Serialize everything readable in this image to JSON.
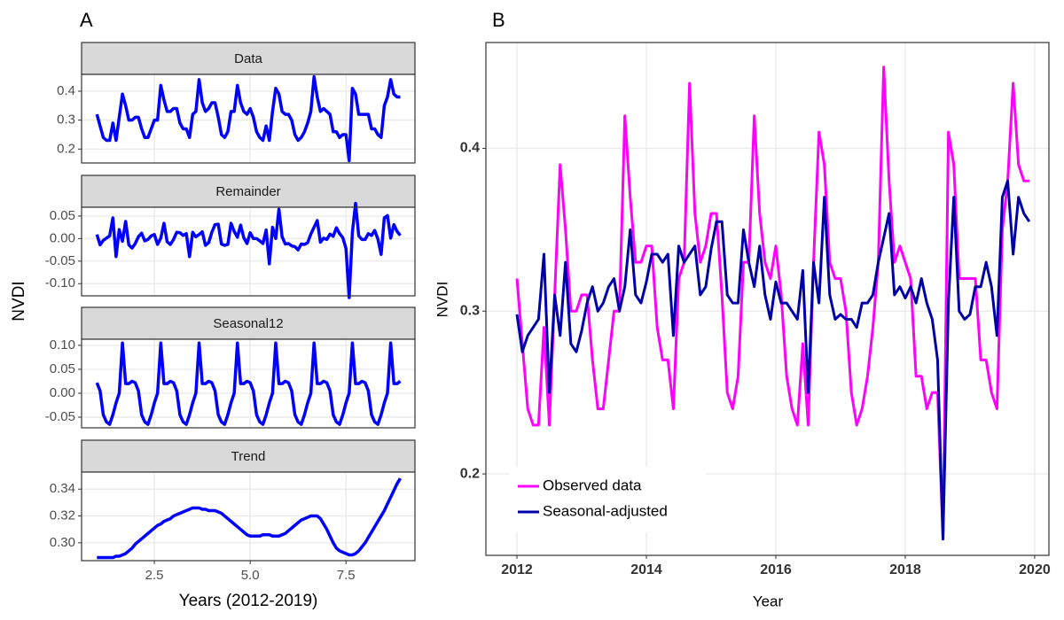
{
  "chart_data": [
    {
      "type": "line",
      "panel_label": "A",
      "ylabel": "NVDI",
      "xlabel": "Years (2012-2019)",
      "color": "#0000ff",
      "grid": true,
      "x": [
        1,
        1.083,
        1.167,
        1.25,
        1.333,
        1.417,
        1.5,
        1.583,
        1.667,
        1.75,
        1.833,
        1.917,
        2,
        2.083,
        2.167,
        2.25,
        2.333,
        2.417,
        2.5,
        2.583,
        2.667,
        2.75,
        2.833,
        2.917,
        3,
        3.083,
        3.167,
        3.25,
        3.333,
        3.417,
        3.5,
        3.583,
        3.667,
        3.75,
        3.833,
        3.917,
        4,
        4.083,
        4.167,
        4.25,
        4.333,
        4.417,
        4.5,
        4.583,
        4.667,
        4.75,
        4.833,
        4.917,
        5,
        5.083,
        5.167,
        5.25,
        5.333,
        5.417,
        5.5,
        5.583,
        5.667,
        5.75,
        5.833,
        5.917,
        6,
        6.083,
        6.167,
        6.25,
        6.333,
        6.417,
        6.5,
        6.583,
        6.667,
        6.75,
        6.833,
        6.917,
        7,
        7.083,
        7.167,
        7.25,
        7.333,
        7.417,
        7.5,
        7.583,
        7.667,
        7.75,
        7.833,
        7.917,
        8,
        8.083,
        8.167,
        8.25,
        8.333,
        8.417,
        8.5,
        8.583,
        8.667,
        8.75,
        8.833,
        8.917
      ],
      "xlim": [
        0.6,
        9.3
      ],
      "xticks": [
        2.5,
        {
          "value": 5,
          "label": "5.0"
        },
        7.5
      ],
      "facets": [
        {
          "title": "Data",
          "ylim": [
            0.152,
            0.458
          ],
          "yticks": [
            0.2,
            0.3,
            0.4
          ],
          "values": [
            0.32,
            0.28,
            0.24,
            0.23,
            0.23,
            0.29,
            0.23,
            0.31,
            0.39,
            0.35,
            0.3,
            0.3,
            0.31,
            0.31,
            0.27,
            0.24,
            0.24,
            0.27,
            0.3,
            0.3,
            0.42,
            0.37,
            0.33,
            0.33,
            0.34,
            0.34,
            0.29,
            0.27,
            0.27,
            0.24,
            0.32,
            0.33,
            0.44,
            0.36,
            0.33,
            0.34,
            0.36,
            0.36,
            0.31,
            0.25,
            0.24,
            0.26,
            0.33,
            0.33,
            0.42,
            0.36,
            0.33,
            0.32,
            0.34,
            0.31,
            0.26,
            0.24,
            0.23,
            0.28,
            0.23,
            0.33,
            0.41,
            0.39,
            0.33,
            0.32,
            0.32,
            0.3,
            0.25,
            0.23,
            0.24,
            0.26,
            0.29,
            0.33,
            0.45,
            0.38,
            0.33,
            0.34,
            0.33,
            0.32,
            0.26,
            0.26,
            0.24,
            0.25,
            0.25,
            0.16,
            0.41,
            0.39,
            0.32,
            0.32,
            0.32,
            0.32,
            0.27,
            0.27,
            0.25,
            0.24,
            0.35,
            0.38,
            0.44,
            0.39,
            0.38,
            0.38
          ]
        },
        {
          "title": "Remainder",
          "ylim": [
            -0.127,
            0.0695
          ],
          "yticks": [
            {
              "value": -0.1,
              "label": "-0.10"
            },
            -0.05,
            {
              "value": 0,
              "label": "0.00"
            },
            0.05
          ],
          "values": [
            0.009,
            -0.014,
            -0.004,
            0.001,
            0.006,
            0.046,
            -0.04,
            0.02,
            -0.006,
            0.038,
            -0.014,
            -0.021,
            -0.011,
            0.004,
            0.012,
            -0.005,
            -0.002,
            0.006,
            0.009,
            -0.013,
            0.001,
            0.034,
            -0.007,
            -0.013,
            -0.002,
            0.014,
            0.013,
            0.007,
            0.011,
            -0.04,
            0.014,
            0.004,
            0.009,
            0.015,
            -0.015,
            -0.009,
            0.014,
            0.031,
            0.032,
            -0.012,
            -0.015,
            -0.013,
            0.034,
            0.016,
            0.003,
            0.03,
            0.002,
            -0.011,
            0.013,
            0,
            0,
            -0.005,
            -0.011,
            0.019,
            -0.056,
            0.025,
            0,
            0.065,
            0.004,
            -0.012,
            -0.011,
            -0.016,
            -0.018,
            -0.025,
            -0.012,
            -0.013,
            -0.009,
            0.01,
            0.025,
            0.04,
            -0.008,
            0.001,
            -0.002,
            0.01,
            0.005,
            0.024,
            0.011,
            0.002,
            -0.022,
            -0.131,
            0.014,
            0.078,
            0.006,
            -0.002,
            -0.002,
            0.011,
            0.007,
            0.018,
            -0.001,
            -0.035,
            0.046,
            0.051,
            0.001,
            0.031,
            0.016,
            0.007
          ]
        },
        {
          "title": "Seasonal12",
          "ylim": [
            -0.0722,
            0.1128
          ],
          "yticks": [
            -0.05,
            {
              "value": 0,
              "label": "0.00"
            },
            0.05,
            {
              "value": 0.1,
              "label": "0.10"
            }
          ],
          "values": [
            0.022,
            0.005,
            -0.045,
            -0.06,
            -0.065,
            -0.045,
            -0.02,
            0,
            0.105,
            0.02,
            0.02,
            0.025,
            0.022,
            0.005,
            -0.045,
            -0.06,
            -0.065,
            -0.045,
            -0.02,
            0,
            0.105,
            0.02,
            0.02,
            0.025,
            0.022,
            0.005,
            -0.045,
            -0.06,
            -0.065,
            -0.045,
            -0.02,
            0,
            0.105,
            0.02,
            0.02,
            0.025,
            0.022,
            0.005,
            -0.045,
            -0.06,
            -0.065,
            -0.045,
            -0.02,
            0,
            0.105,
            0.02,
            0.02,
            0.025,
            0.022,
            0.005,
            -0.045,
            -0.06,
            -0.065,
            -0.045,
            -0.02,
            0,
            0.105,
            0.02,
            0.02,
            0.025,
            0.022,
            0.005,
            -0.045,
            -0.06,
            -0.065,
            -0.045,
            -0.02,
            0,
            0.105,
            0.02,
            0.02,
            0.025,
            0.022,
            0.005,
            -0.045,
            -0.06,
            -0.065,
            -0.045,
            -0.02,
            0,
            0.105,
            0.02,
            0.02,
            0.025,
            0.022,
            0.005,
            -0.045,
            -0.06,
            -0.065,
            -0.045,
            -0.02,
            0,
            0.105,
            0.02,
            0.02,
            0.025
          ]
        },
        {
          "title": "Trend",
          "ylim": [
            0.2867,
            0.3527
          ],
          "yticks": [
            {
              "value": 0.3,
              "label": "0.30"
            },
            0.32,
            0.34
          ],
          "values": [
            0.289,
            0.289,
            0.289,
            0.289,
            0.289,
            0.289,
            0.29,
            0.29,
            0.291,
            0.292,
            0.294,
            0.296,
            0.299,
            0.301,
            0.303,
            0.305,
            0.307,
            0.309,
            0.311,
            0.313,
            0.314,
            0.316,
            0.317,
            0.318,
            0.32,
            0.321,
            0.322,
            0.323,
            0.324,
            0.325,
            0.326,
            0.326,
            0.326,
            0.325,
            0.325,
            0.324,
            0.324,
            0.324,
            0.323,
            0.322,
            0.32,
            0.318,
            0.316,
            0.314,
            0.312,
            0.31,
            0.308,
            0.306,
            0.305,
            0.305,
            0.305,
            0.305,
            0.306,
            0.306,
            0.306,
            0.305,
            0.305,
            0.305,
            0.306,
            0.307,
            0.309,
            0.311,
            0.313,
            0.315,
            0.317,
            0.318,
            0.319,
            0.32,
            0.32,
            0.32,
            0.318,
            0.314,
            0.31,
            0.305,
            0.3,
            0.296,
            0.294,
            0.293,
            0.292,
            0.291,
            0.291,
            0.292,
            0.294,
            0.297,
            0.3,
            0.304,
            0.308,
            0.312,
            0.316,
            0.32,
            0.324,
            0.329,
            0.334,
            0.339,
            0.344,
            0.348
          ]
        }
      ]
    },
    {
      "type": "line",
      "panel_label": "B",
      "ylabel": "NVDI",
      "xlabel": "Year",
      "grid": true,
      "legend": "bottom-left",
      "x": [
        2012,
        2012.083,
        2012.167,
        2012.25,
        2012.333,
        2012.417,
        2012.5,
        2012.583,
        2012.667,
        2012.75,
        2012.833,
        2012.917,
        2013,
        2013.083,
        2013.167,
        2013.25,
        2013.333,
        2013.417,
        2013.5,
        2013.583,
        2013.667,
        2013.75,
        2013.833,
        2013.917,
        2014,
        2014.083,
        2014.167,
        2014.25,
        2014.333,
        2014.417,
        2014.5,
        2014.583,
        2014.667,
        2014.75,
        2014.833,
        2014.917,
        2015,
        2015.083,
        2015.167,
        2015.25,
        2015.333,
        2015.417,
        2015.5,
        2015.583,
        2015.667,
        2015.75,
        2015.833,
        2015.917,
        2016,
        2016.083,
        2016.167,
        2016.25,
        2016.333,
        2016.417,
        2016.5,
        2016.583,
        2016.667,
        2016.75,
        2016.833,
        2016.917,
        2017,
        2017.083,
        2017.167,
        2017.25,
        2017.333,
        2017.417,
        2017.5,
        2017.583,
        2017.667,
        2017.75,
        2017.833,
        2017.917,
        2018,
        2018.083,
        2018.167,
        2018.25,
        2018.333,
        2018.417,
        2018.5,
        2018.583,
        2018.667,
        2018.75,
        2018.833,
        2018.917,
        2019,
        2019.083,
        2019.167,
        2019.25,
        2019.333,
        2019.417,
        2019.5,
        2019.583,
        2019.667,
        2019.75,
        2019.833,
        2019.917
      ],
      "xlim": [
        2011.52,
        2020.22
      ],
      "xticks": [
        2012,
        2014,
        2016,
        2018,
        2020
      ],
      "ylim": [
        0.15,
        0.465
      ],
      "yticks": [
        0.2,
        0.3,
        0.4
      ],
      "series": [
        {
          "name": "Observed data",
          "color": "#ff00ff",
          "values": [
            0.32,
            0.28,
            0.24,
            0.23,
            0.23,
            0.29,
            0.23,
            0.31,
            0.39,
            0.35,
            0.3,
            0.3,
            0.31,
            0.31,
            0.27,
            0.24,
            0.24,
            0.27,
            0.3,
            0.3,
            0.42,
            0.37,
            0.33,
            0.33,
            0.34,
            0.34,
            0.29,
            0.27,
            0.27,
            0.24,
            0.32,
            0.33,
            0.44,
            0.36,
            0.33,
            0.34,
            0.36,
            0.36,
            0.31,
            0.25,
            0.24,
            0.26,
            0.33,
            0.33,
            0.42,
            0.36,
            0.33,
            0.32,
            0.34,
            0.31,
            0.26,
            0.24,
            0.23,
            0.28,
            0.23,
            0.33,
            0.41,
            0.39,
            0.33,
            0.32,
            0.32,
            0.3,
            0.25,
            0.23,
            0.24,
            0.26,
            0.29,
            0.33,
            0.45,
            0.38,
            0.33,
            0.34,
            0.33,
            0.32,
            0.26,
            0.26,
            0.24,
            0.25,
            0.25,
            0.16,
            0.41,
            0.39,
            0.32,
            0.32,
            0.32,
            0.32,
            0.27,
            0.27,
            0.25,
            0.24,
            0.35,
            0.38,
            0.44,
            0.39,
            0.38,
            0.38
          ]
        },
        {
          "name": "Seasonal-adjusted",
          "color": "#0000a8",
          "values": [
            0.298,
            0.275,
            0.285,
            0.29,
            0.295,
            0.335,
            0.25,
            0.31,
            0.285,
            0.33,
            0.28,
            0.275,
            0.288,
            0.305,
            0.315,
            0.3,
            0.305,
            0.315,
            0.32,
            0.3,
            0.315,
            0.35,
            0.31,
            0.305,
            0.318,
            0.335,
            0.335,
            0.33,
            0.335,
            0.285,
            0.34,
            0.33,
            0.335,
            0.34,
            0.31,
            0.315,
            0.338,
            0.355,
            0.355,
            0.31,
            0.305,
            0.305,
            0.35,
            0.33,
            0.315,
            0.34,
            0.31,
            0.295,
            0.318,
            0.305,
            0.305,
            0.3,
            0.295,
            0.325,
            0.25,
            0.33,
            0.305,
            0.37,
            0.31,
            0.295,
            0.298,
            0.295,
            0.295,
            0.29,
            0.305,
            0.305,
            0.31,
            0.33,
            0.345,
            0.36,
            0.31,
            0.315,
            0.308,
            0.315,
            0.305,
            0.32,
            0.305,
            0.295,
            0.27,
            0.16,
            0.305,
            0.37,
            0.3,
            0.295,
            0.298,
            0.315,
            0.315,
            0.33,
            0.315,
            0.285,
            0.37,
            0.38,
            0.335,
            0.37,
            0.36,
            0.355
          ]
        }
      ]
    }
  ]
}
